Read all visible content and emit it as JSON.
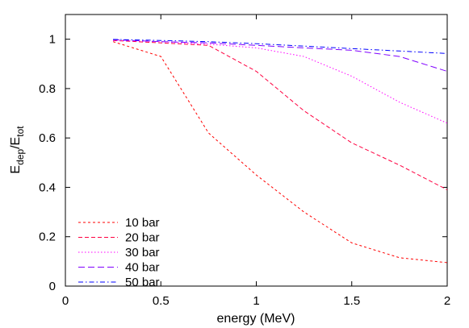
{
  "chart_data": {
    "type": "line",
    "xlabel": "energy (MeV)",
    "ylabel": {
      "base": "E",
      "sub": "dep",
      "sep": "/E",
      "sub2": "tot"
    },
    "xlim": [
      0,
      2
    ],
    "ylim": [
      0,
      1.1
    ],
    "xticks": [
      0,
      0.5,
      1,
      1.5,
      2
    ],
    "xtick_labels": [
      "0",
      "0.5",
      "1",
      "1.5",
      "2"
    ],
    "yticks": [
      0,
      0.2,
      0.4,
      0.6,
      0.8,
      1
    ],
    "ytick_labels": [
      "0",
      "0.2",
      "0.4",
      "0.6",
      "0.8",
      "1"
    ],
    "grid": false,
    "legend_position": "bottom-left",
    "series": [
      {
        "name": "10 bar",
        "color": "#ff0000",
        "dash": "short-dash",
        "x": [
          0.25,
          0.5,
          0.75,
          1.0,
          1.25,
          1.5,
          1.75,
          2.0
        ],
        "y": [
          0.99,
          0.93,
          0.62,
          0.45,
          0.3,
          0.175,
          0.115,
          0.095
        ]
      },
      {
        "name": "20 bar",
        "color": "#ff0040",
        "dash": "dash",
        "x": [
          0.25,
          0.5,
          0.75,
          1.0,
          1.25,
          1.5,
          1.75,
          2.0
        ],
        "y": [
          0.995,
          0.985,
          0.975,
          0.87,
          0.71,
          0.58,
          0.49,
          0.39
        ]
      },
      {
        "name": "30 bar",
        "color": "#ff00ff",
        "dash": "dot",
        "x": [
          0.25,
          0.5,
          0.75,
          1.0,
          1.25,
          1.5,
          1.75,
          2.0
        ],
        "y": [
          0.995,
          0.99,
          0.98,
          0.965,
          0.93,
          0.85,
          0.745,
          0.66
        ]
      },
      {
        "name": "40 bar",
        "color": "#8000ff",
        "dash": "long-dash",
        "x": [
          0.25,
          0.5,
          0.75,
          1.0,
          1.25,
          1.5,
          1.75,
          2.0
        ],
        "y": [
          0.998,
          0.99,
          0.985,
          0.975,
          0.965,
          0.955,
          0.93,
          0.87
        ]
      },
      {
        "name": "50 bar",
        "color": "#0000ff",
        "dash": "dash-dot",
        "x": [
          0.25,
          0.5,
          0.75,
          1.0,
          1.25,
          1.5,
          1.75,
          2.0
        ],
        "y": [
          0.999,
          0.995,
          0.99,
          0.982,
          0.972,
          0.962,
          0.952,
          0.942
        ]
      }
    ]
  }
}
